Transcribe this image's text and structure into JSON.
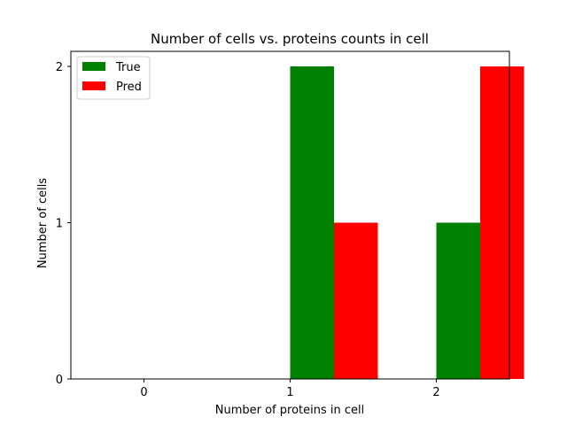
{
  "chart_data": {
    "type": "bar",
    "title": "Number of cells vs. proteins counts in cell",
    "xlabel": "Number of proteins in cell",
    "ylabel": "Number of cells",
    "categories": [
      "0",
      "1",
      "2"
    ],
    "x": [
      0,
      1,
      2
    ],
    "series": [
      {
        "name": "True",
        "values": [
          0,
          2,
          1
        ],
        "color": "#008000"
      },
      {
        "name": "Pred",
        "values": [
          0,
          1,
          2
        ],
        "color": "#ff0000"
      }
    ],
    "xlim": [
      -0.5,
      2.5
    ],
    "ylim": [
      0,
      2
    ],
    "yticks": [
      "0",
      "1",
      "2"
    ],
    "grid": false,
    "legend_position": "top-left"
  }
}
